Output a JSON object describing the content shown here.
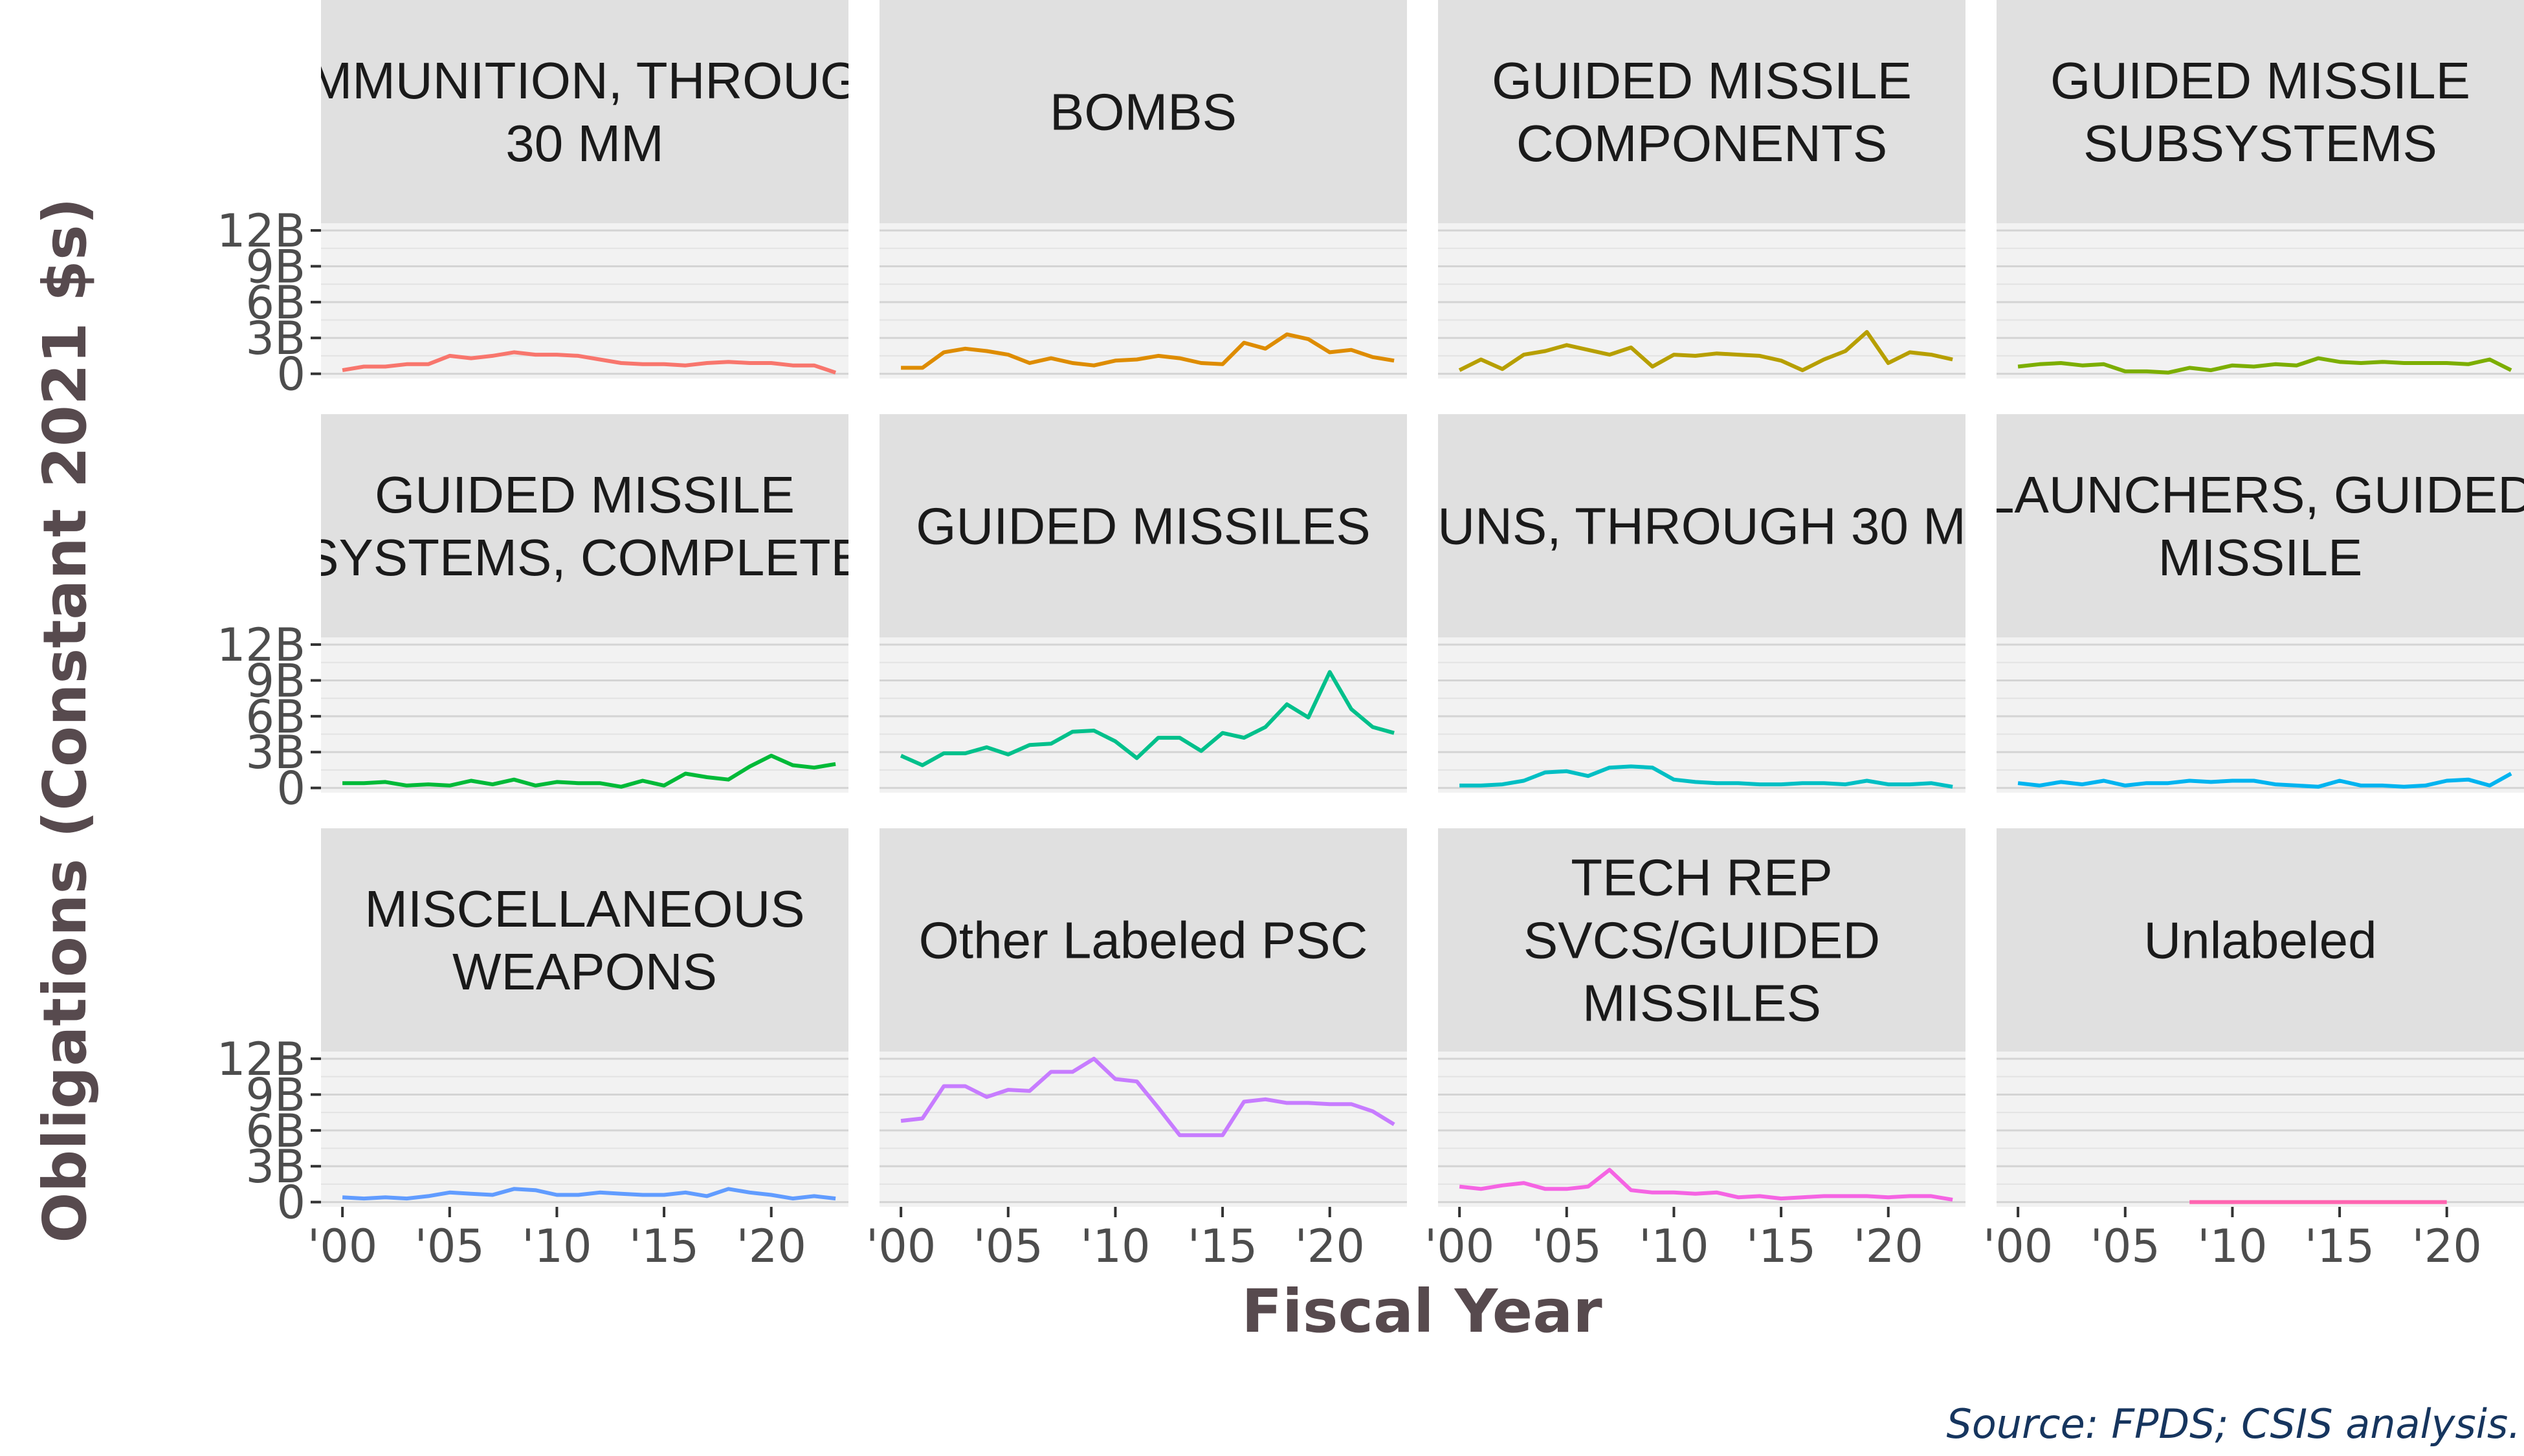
{
  "chart_data": {
    "type": "line",
    "facet_layout": "4 columns x 3 rows",
    "xlabel": "Fiscal Year",
    "ylabel": "Obligations (Constant 2021 $s)",
    "source": "Source: FPDS; CSIS analysis.",
    "x_ticks": [
      2000,
      2005,
      2010,
      2015,
      2020
    ],
    "x_tick_labels": [
      "'00",
      "'05",
      "'10",
      "'15",
      "'20"
    ],
    "xlim": [
      1999,
      2023.6
    ],
    "y_ticks": [
      0,
      3,
      6,
      9,
      12
    ],
    "y_tick_labels": [
      "0",
      "3B",
      "6B",
      "9B",
      "12B"
    ],
    "ylim": [
      -0.4,
      12.6
    ],
    "y_unit": "billions",
    "grid": true,
    "legend": "none",
    "panels": [
      {
        "title_lines": [
          "MMUNITION, THROUG",
          "30 MM"
        ],
        "color": "#f8766d",
        "x": [
          2000,
          2001,
          2002,
          2003,
          2004,
          2005,
          2006,
          2007,
          2008,
          2009,
          2010,
          2011,
          2012,
          2013,
          2014,
          2015,
          2016,
          2017,
          2018,
          2019,
          2020,
          2021,
          2022,
          2023
        ],
        "y": [
          0.3,
          0.6,
          0.6,
          0.8,
          0.8,
          1.5,
          1.3,
          1.5,
          1.8,
          1.6,
          1.6,
          1.5,
          1.2,
          0.9,
          0.8,
          0.8,
          0.7,
          0.9,
          1.0,
          0.9,
          0.9,
          0.7,
          0.7,
          0.1
        ]
      },
      {
        "title_lines": [
          "BOMBS"
        ],
        "color": "#de8c00",
        "x": [
          2000,
          2001,
          2002,
          2003,
          2004,
          2005,
          2006,
          2007,
          2008,
          2009,
          2010,
          2011,
          2012,
          2013,
          2014,
          2015,
          2016,
          2017,
          2018,
          2019,
          2020,
          2021,
          2022,
          2023
        ],
        "y": [
          0.5,
          0.5,
          1.8,
          2.1,
          1.9,
          1.6,
          0.9,
          1.3,
          0.9,
          0.7,
          1.1,
          1.2,
          1.5,
          1.3,
          0.9,
          0.8,
          2.6,
          2.1,
          3.3,
          2.9,
          1.8,
          2.0,
          1.4,
          1.1
        ]
      },
      {
        "title_lines": [
          "GUIDED MISSILE",
          "COMPONENTS"
        ],
        "color": "#b79f00",
        "x": [
          2000,
          2001,
          2002,
          2003,
          2004,
          2005,
          2006,
          2007,
          2008,
          2009,
          2010,
          2011,
          2012,
          2013,
          2014,
          2015,
          2016,
          2017,
          2018,
          2019,
          2020,
          2021,
          2022,
          2023
        ],
        "y": [
          0.3,
          1.2,
          0.4,
          1.6,
          1.9,
          2.4,
          2.0,
          1.6,
          2.2,
          0.6,
          1.6,
          1.5,
          1.7,
          1.6,
          1.5,
          1.1,
          0.3,
          1.2,
          1.9,
          3.5,
          0.9,
          1.8,
          1.6,
          1.2
        ]
      },
      {
        "title_lines": [
          "GUIDED MISSILE",
          "SUBSYSTEMS"
        ],
        "color": "#7cae00",
        "x": [
          2000,
          2001,
          2002,
          2003,
          2004,
          2005,
          2006,
          2007,
          2008,
          2009,
          2010,
          2011,
          2012,
          2013,
          2014,
          2015,
          2016,
          2017,
          2018,
          2019,
          2020,
          2021,
          2022,
          2023
        ],
        "y": [
          0.6,
          0.8,
          0.9,
          0.7,
          0.8,
          0.2,
          0.2,
          0.1,
          0.5,
          0.3,
          0.7,
          0.6,
          0.8,
          0.7,
          1.3,
          1.0,
          0.9,
          1.0,
          0.9,
          0.9,
          0.9,
          0.8,
          1.2,
          0.3
        ]
      },
      {
        "title_lines": [
          "GUIDED MISSILE",
          "SYSTEMS, COMPLETE"
        ],
        "color": "#00ba38",
        "x": [
          2000,
          2001,
          2002,
          2003,
          2004,
          2005,
          2006,
          2007,
          2008,
          2009,
          2010,
          2011,
          2012,
          2013,
          2014,
          2015,
          2016,
          2017,
          2018,
          2019,
          2020,
          2021,
          2022,
          2023
        ],
        "y": [
          0.4,
          0.4,
          0.5,
          0.2,
          0.3,
          0.2,
          0.6,
          0.3,
          0.7,
          0.2,
          0.5,
          0.4,
          0.4,
          0.1,
          0.6,
          0.2,
          1.2,
          0.9,
          0.7,
          1.8,
          2.7,
          1.9,
          1.7,
          2.0
        ]
      },
      {
        "title_lines": [
          "GUIDED MISSILES"
        ],
        "color": "#00c08b",
        "x": [
          2000,
          2001,
          2002,
          2003,
          2004,
          2005,
          2006,
          2007,
          2008,
          2009,
          2010,
          2011,
          2012,
          2013,
          2014,
          2015,
          2016,
          2017,
          2018,
          2019,
          2020,
          2021,
          2022,
          2023
        ],
        "y": [
          2.7,
          1.9,
          2.9,
          2.9,
          3.4,
          2.8,
          3.6,
          3.7,
          4.7,
          4.8,
          3.9,
          2.5,
          4.2,
          4.2,
          3.1,
          4.6,
          4.2,
          5.1,
          7.0,
          5.9,
          9.7,
          6.6,
          5.1,
          4.6
        ]
      },
      {
        "title_lines": [
          "UNS, THROUGH 30 M"
        ],
        "color": "#00bfc4",
        "x": [
          2000,
          2001,
          2002,
          2003,
          2004,
          2005,
          2006,
          2007,
          2008,
          2009,
          2010,
          2011,
          2012,
          2013,
          2014,
          2015,
          2016,
          2017,
          2018,
          2019,
          2020,
          2021,
          2022,
          2023
        ],
        "y": [
          0.2,
          0.2,
          0.3,
          0.6,
          1.3,
          1.4,
          1.0,
          1.7,
          1.8,
          1.7,
          0.7,
          0.5,
          0.4,
          0.4,
          0.3,
          0.3,
          0.4,
          0.4,
          0.3,
          0.6,
          0.3,
          0.3,
          0.4,
          0.1
        ]
      },
      {
        "title_lines": [
          "LAUNCHERS, GUIDED",
          "MISSILE"
        ],
        "color": "#00b4f0",
        "x": [
          2000,
          2001,
          2002,
          2003,
          2004,
          2005,
          2006,
          2007,
          2008,
          2009,
          2010,
          2011,
          2012,
          2013,
          2014,
          2015,
          2016,
          2017,
          2018,
          2019,
          2020,
          2021,
          2022,
          2023
        ],
        "y": [
          0.4,
          0.2,
          0.5,
          0.3,
          0.6,
          0.2,
          0.4,
          0.4,
          0.6,
          0.5,
          0.6,
          0.6,
          0.3,
          0.2,
          0.1,
          0.6,
          0.2,
          0.2,
          0.1,
          0.2,
          0.6,
          0.7,
          0.2,
          1.2
        ]
      },
      {
        "title_lines": [
          "MISCELLANEOUS",
          "WEAPONS"
        ],
        "color": "#619cff",
        "x": [
          2000,
          2001,
          2002,
          2003,
          2004,
          2005,
          2006,
          2007,
          2008,
          2009,
          2010,
          2011,
          2012,
          2013,
          2014,
          2015,
          2016,
          2017,
          2018,
          2019,
          2020,
          2021,
          2022,
          2023
        ],
        "y": [
          0.4,
          0.3,
          0.4,
          0.3,
          0.5,
          0.8,
          0.7,
          0.6,
          1.1,
          1.0,
          0.6,
          0.6,
          0.8,
          0.7,
          0.6,
          0.6,
          0.8,
          0.5,
          1.1,
          0.8,
          0.6,
          0.3,
          0.5,
          0.3
        ]
      },
      {
        "title_lines": [
          "Other Labeled PSC"
        ],
        "color": "#c77cff",
        "x": [
          2000,
          2001,
          2002,
          2003,
          2004,
          2005,
          2006,
          2007,
          2008,
          2009,
          2010,
          2011,
          2012,
          2013,
          2014,
          2015,
          2016,
          2017,
          2018,
          2019,
          2020,
          2021,
          2022,
          2023
        ],
        "y": [
          6.8,
          7.0,
          9.7,
          9.7,
          8.8,
          9.4,
          9.3,
          10.9,
          10.9,
          12.0,
          10.3,
          10.1,
          7.9,
          5.6,
          5.6,
          5.6,
          8.4,
          8.6,
          8.3,
          8.3,
          8.2,
          8.2,
          7.6,
          6.5
        ]
      },
      {
        "title_lines": [
          "TECH REP",
          "SVCS/GUIDED",
          "MISSILES"
        ],
        "color": "#f564e3",
        "x": [
          2000,
          2001,
          2002,
          2003,
          2004,
          2005,
          2006,
          2007,
          2008,
          2009,
          2010,
          2011,
          2012,
          2013,
          2014,
          2015,
          2016,
          2017,
          2018,
          2019,
          2020,
          2021,
          2022,
          2023
        ],
        "y": [
          1.3,
          1.1,
          1.4,
          1.6,
          1.1,
          1.1,
          1.3,
          2.7,
          1.0,
          0.8,
          0.8,
          0.7,
          0.8,
          0.4,
          0.5,
          0.3,
          0.4,
          0.5,
          0.5,
          0.5,
          0.4,
          0.5,
          0.5,
          0.2
        ]
      },
      {
        "title_lines": [
          "Unlabeled"
        ],
        "color": "#ff64b0",
        "x": [
          2008,
          2009,
          2010,
          2011,
          2012,
          2013,
          2014,
          2015,
          2016,
          2017,
          2018,
          2019,
          2020
        ],
        "y": [
          0,
          0,
          0,
          0,
          0,
          0,
          0,
          0,
          0,
          0,
          0,
          0,
          0
        ]
      }
    ]
  }
}
